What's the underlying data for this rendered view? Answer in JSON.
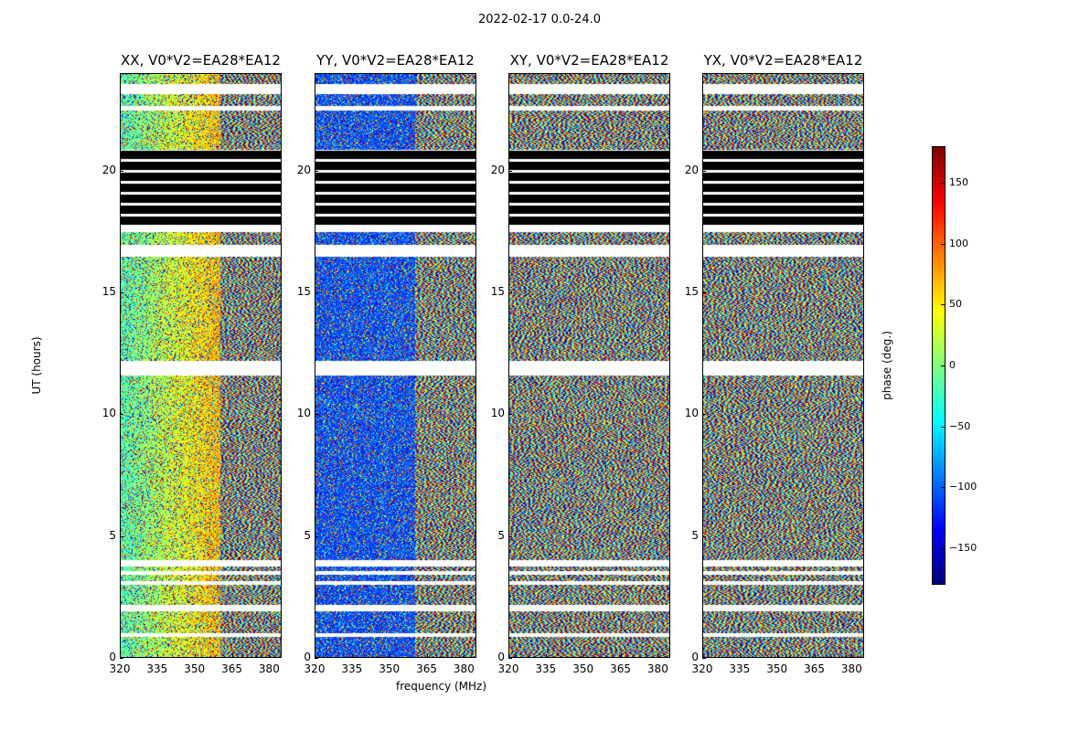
{
  "figure": {
    "suptitle": "2022-02-17 0.0-24.0",
    "xlabel": "frequency (MHz)",
    "ylabel": "UT (hours)",
    "colorbar_label": "phase (deg.)"
  },
  "chart_data": [
    {
      "type": "heatmap",
      "title": "XX, V0*V2=EA28*EA12",
      "xlabel": "frequency (MHz)",
      "ylabel": "UT (hours)",
      "xlim": [
        320,
        385
      ],
      "ylim": [
        0,
        24
      ],
      "xticks": [
        320,
        335,
        350,
        365,
        380
      ],
      "yticks": [
        0,
        5,
        10,
        15,
        20
      ],
      "colorscale": "jet",
      "zlim": [
        -180,
        180
      ],
      "pattern": "coherent"
    },
    {
      "type": "heatmap",
      "title": "YY, V0*V2=EA28*EA12",
      "xlabel": "frequency (MHz)",
      "ylabel": "UT (hours)",
      "xlim": [
        320,
        385
      ],
      "ylim": [
        0,
        24
      ],
      "xticks": [
        320,
        335,
        350,
        365,
        380
      ],
      "yticks": [
        0,
        5,
        10,
        15,
        20
      ],
      "colorscale": "jet",
      "zlim": [
        -180,
        180
      ],
      "pattern": "coherent-negative"
    },
    {
      "type": "heatmap",
      "title": "XY, V0*V2=EA28*EA12",
      "xlabel": "frequency (MHz)",
      "ylabel": "UT (hours)",
      "xlim": [
        320,
        385
      ],
      "ylim": [
        0,
        24
      ],
      "xticks": [
        320,
        335,
        350,
        365,
        380
      ],
      "yticks": [
        0,
        5,
        10,
        15,
        20
      ],
      "colorscale": "jet",
      "zlim": [
        -180,
        180
      ],
      "pattern": "noise"
    },
    {
      "type": "heatmap",
      "title": "YX, V0*V2=EA28*EA12",
      "xlabel": "frequency (MHz)",
      "ylabel": "UT (hours)",
      "xlim": [
        320,
        385
      ],
      "ylim": [
        0,
        24
      ],
      "xticks": [
        320,
        335,
        350,
        365,
        380
      ],
      "yticks": [
        0,
        5,
        10,
        15,
        20
      ],
      "colorscale": "jet",
      "zlim": [
        -180,
        180
      ],
      "pattern": "noise"
    }
  ],
  "colorbar": {
    "range": [
      -180,
      180
    ],
    "ticks": [
      -150,
      -100,
      -50,
      0,
      50,
      100,
      150
    ],
    "tick_labels": [
      "−150",
      "−100",
      "−50",
      "0",
      "50",
      "100",
      "150"
    ]
  },
  "flagged_blank_hours": [
    [
      0.85,
      1.0
    ],
    [
      1.9,
      2.15
    ],
    [
      3.0,
      3.15
    ],
    [
      3.4,
      3.55
    ],
    [
      3.75,
      4.0
    ],
    [
      11.6,
      12.2
    ],
    [
      16.5,
      17.0
    ],
    [
      17.5,
      17.7
    ],
    [
      22.5,
      22.7
    ],
    [
      23.2,
      23.6
    ]
  ],
  "flagged_black_hours": [
    [
      17.7,
      20.9
    ]
  ]
}
